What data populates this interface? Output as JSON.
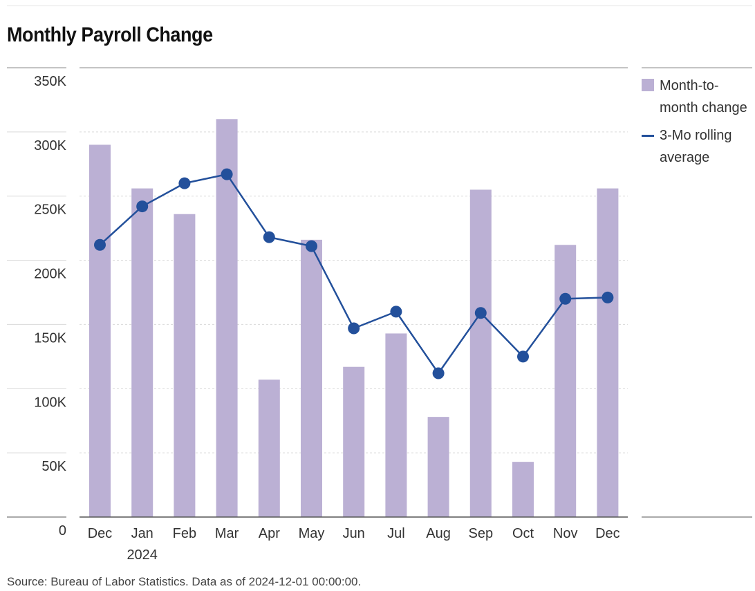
{
  "title": "Monthly Payroll Change",
  "source": "Source: Bureau of Labor Statistics. Data as of 2024-12-01 00:00:00.",
  "legend": {
    "bar_label": "Month-to-month change",
    "line_label": "3-Mo rolling average"
  },
  "colors": {
    "bar": "#bbb0d4",
    "line": "#23509b",
    "grid": "#d9d9d9"
  },
  "chart_data": {
    "type": "bar",
    "categories": [
      "Dec",
      "Jan",
      "Feb",
      "Mar",
      "Apr",
      "May",
      "Jun",
      "Jul",
      "Aug",
      "Sep",
      "Oct",
      "Nov",
      "Dec"
    ],
    "year_label": {
      "category_index": 1,
      "text": "2024"
    },
    "series": [
      {
        "name": "Month-to-month change",
        "type": "bar",
        "values": [
          290000,
          256000,
          236000,
          310000,
          107000,
          216000,
          117000,
          143000,
          78000,
          255000,
          43000,
          212000,
          256000
        ]
      },
      {
        "name": "3-Mo rolling average",
        "type": "line",
        "values": [
          212000,
          242000,
          260000,
          267000,
          218000,
          211000,
          147000,
          160000,
          112000,
          159000,
          125000,
          170000,
          171000
        ]
      }
    ],
    "yticks": [
      "0",
      "50K",
      "100K",
      "150K",
      "200K",
      "250K",
      "300K",
      "350K"
    ],
    "ylim": [
      0,
      350000
    ],
    "grid": true,
    "legend_position": "right"
  }
}
